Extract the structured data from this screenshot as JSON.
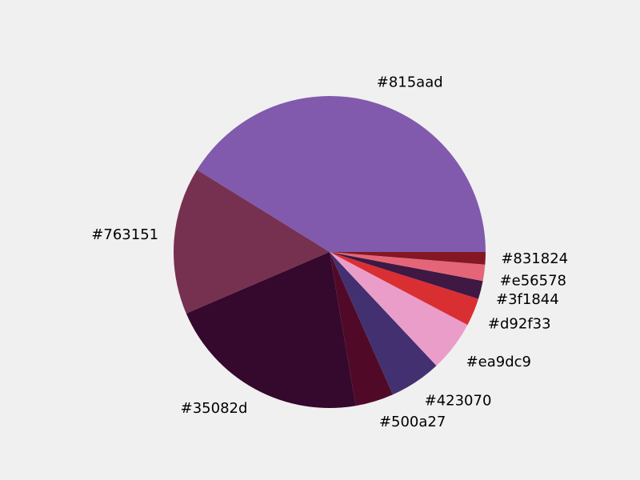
{
  "chart_data": {
    "type": "pie",
    "title": "",
    "start_angle_deg": 0,
    "direction": "counterclockwise",
    "slices": [
      {
        "label": "#815aad",
        "value": 41.5,
        "color": "#815aad"
      },
      {
        "label": "#763151",
        "value": 15.4,
        "color": "#763151"
      },
      {
        "label": "#35082d",
        "value": 21.4,
        "color": "#35082d"
      },
      {
        "label": "#500a27",
        "value": 4.0,
        "color": "#500a27"
      },
      {
        "label": "#423070",
        "value": 5.4,
        "color": "#423070"
      },
      {
        "label": "#ea9dc9",
        "value": 5.3,
        "color": "#ea9dc9"
      },
      {
        "label": "#d92f33",
        "value": 2.9,
        "color": "#d92f33"
      },
      {
        "label": "#3f1844",
        "value": 1.9,
        "color": "#3f1844"
      },
      {
        "label": "#e56578",
        "value": 1.7,
        "color": "#e56578"
      },
      {
        "label": "#831824",
        "value": 1.3,
        "color": "#831824"
      }
    ]
  }
}
